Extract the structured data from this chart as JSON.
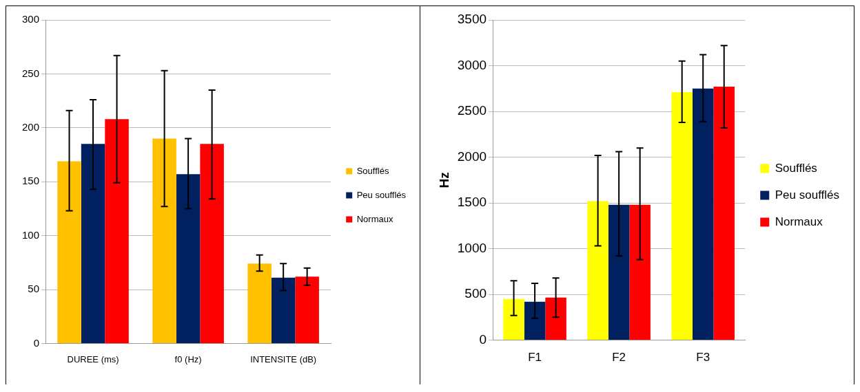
{
  "chart_data": [
    {
      "type": "bar",
      "categories": [
        "DUREE (ms)",
        "f0 (Hz)",
        "INTENSITE (dB)"
      ],
      "ylim": [
        0,
        300
      ],
      "yticks": [
        0,
        50,
        100,
        150,
        200,
        250,
        300
      ],
      "grid": "y",
      "legend": "right",
      "series": [
        {
          "name": "Soufflés",
          "color": "#ffc000",
          "values": [
            169,
            190,
            74
          ],
          "errors": [
            [
              123,
              216
            ],
            [
              127,
              253
            ],
            [
              67,
              82
            ]
          ]
        },
        {
          "name": "Peu soufflés",
          "color": "#002060",
          "values": [
            185,
            157,
            61
          ],
          "errors": [
            [
              143,
              226
            ],
            [
              125,
              190
            ],
            [
              49,
              74
            ]
          ]
        },
        {
          "name": "Normaux",
          "color": "#ff0000",
          "values": [
            208,
            185,
            62
          ],
          "errors": [
            [
              149,
              267
            ],
            [
              134,
              235
            ],
            [
              54,
              70
            ]
          ]
        }
      ]
    },
    {
      "type": "bar",
      "categories": [
        "F1",
        "F2",
        "F3"
      ],
      "ylabel": "Hz",
      "ylim": [
        0,
        3500
      ],
      "yticks": [
        0,
        500,
        1000,
        1500,
        2000,
        2500,
        3000,
        3500
      ],
      "grid": "y",
      "legend": "right",
      "series": [
        {
          "name": "Soufflés",
          "color": "#ffff00",
          "values": [
            450,
            1520,
            2710
          ],
          "errors": [
            [
              270,
              650
            ],
            [
              1030,
              2020
            ],
            [
              2380,
              3050
            ]
          ]
        },
        {
          "name": "Peu soufflés",
          "color": "#002060",
          "values": [
            420,
            1480,
            2750
          ],
          "errors": [
            [
              240,
              620
            ],
            [
              920,
              2060
            ],
            [
              2390,
              3120
            ]
          ]
        },
        {
          "name": "Normaux",
          "color": "#ff0000",
          "values": [
            465,
            1480,
            2770
          ],
          "errors": [
            [
              250,
              680
            ],
            [
              880,
              2100
            ],
            [
              2320,
              3220
            ]
          ]
        }
      ]
    }
  ]
}
